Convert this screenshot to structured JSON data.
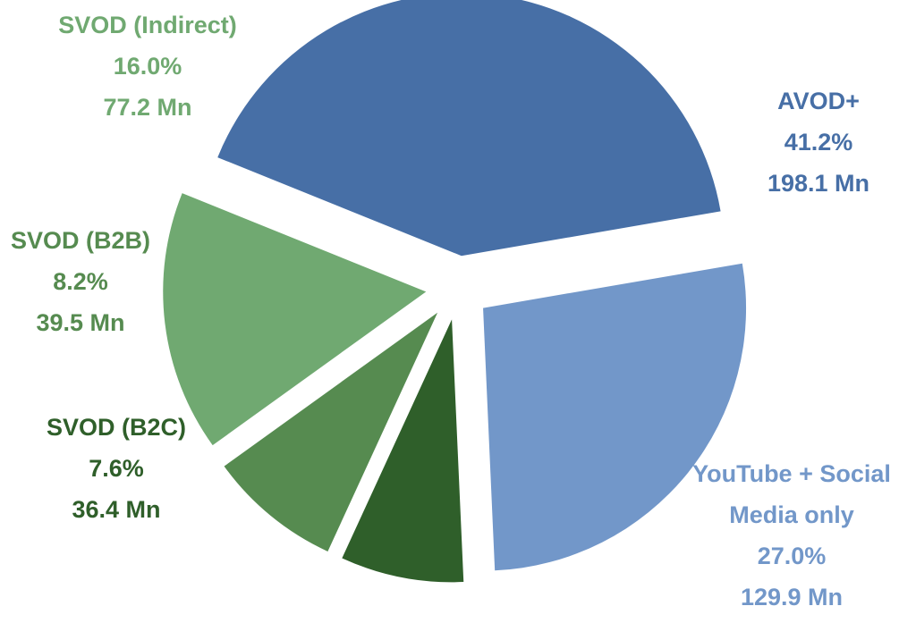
{
  "chart_data": {
    "type": "pie",
    "slices": [
      {
        "name": "AVOD+",
        "name_lines": [
          "AVOD+"
        ],
        "percent_label": "41.2%",
        "value_label": "198.1 Mn",
        "value": 198.1,
        "percent": 41.2,
        "color": "#476fa6"
      },
      {
        "name": "YouTube + Social Media only",
        "name_lines": [
          "YouTube + Social",
          "Media only"
        ],
        "percent_label": "27.0%",
        "value_label": "129.9 Mn",
        "value": 129.9,
        "percent": 27.0,
        "color": "#7297c9"
      },
      {
        "name": "SVOD (B2C)",
        "name_lines": [
          "SVOD (B2C)"
        ],
        "percent_label": "7.6%",
        "value_label": "36.4 Mn",
        "value": 36.4,
        "percent": 7.6,
        "color": "#2f5f2a"
      },
      {
        "name": "SVOD (B2B)",
        "name_lines": [
          "SVOD (B2B)"
        ],
        "percent_label": "8.2%",
        "value_label": "39.5 Mn",
        "value": 39.5,
        "percent": 8.2,
        "color": "#568b50"
      },
      {
        "name": "SVOD (Indirect)",
        "name_lines": [
          "SVOD (Indirect)"
        ],
        "percent_label": "16.0%",
        "value_label": "77.2 Mn",
        "value": 77.2,
        "percent": 16.0,
        "color": "#70a971"
      }
    ]
  }
}
